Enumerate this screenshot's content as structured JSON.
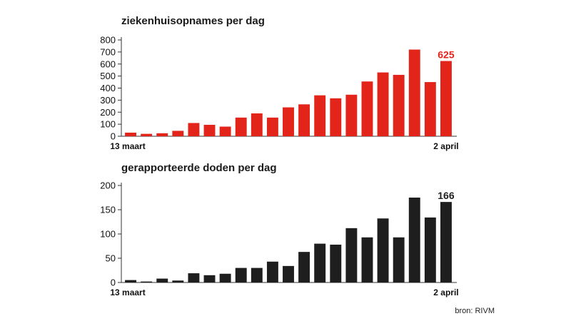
{
  "chart_data": [
    {
      "type": "bar",
      "title": "ziekenhuisopnames per dag",
      "x_labels": [
        "13 maart",
        "2 april"
      ],
      "values": [
        30,
        20,
        25,
        45,
        110,
        95,
        80,
        155,
        190,
        155,
        240,
        265,
        340,
        315,
        345,
        455,
        530,
        510,
        720,
        450,
        625
      ],
      "highlight_label": "625",
      "ylim": [
        0,
        800
      ],
      "yticks": [
        0,
        100,
        200,
        300,
        400,
        500,
        600,
        700,
        800
      ],
      "color": "#e3241b",
      "label_color": "#e3241b",
      "grid": false
    },
    {
      "type": "bar",
      "title": "gerapporteerde doden per dag",
      "x_labels": [
        "13 maart",
        "2 april"
      ],
      "values": [
        5,
        2,
        8,
        4,
        19,
        15,
        18,
        30,
        30,
        43,
        34,
        63,
        80,
        78,
        112,
        93,
        132,
        93,
        175,
        134,
        166
      ],
      "highlight_label": "166",
      "ylim": [
        0,
        200
      ],
      "yticks": [
        0,
        50,
        100,
        150,
        200
      ],
      "color": "#1e1e1e",
      "label_color": "#1e1e1e",
      "grid": false
    }
  ],
  "source": "bron: RIVM"
}
